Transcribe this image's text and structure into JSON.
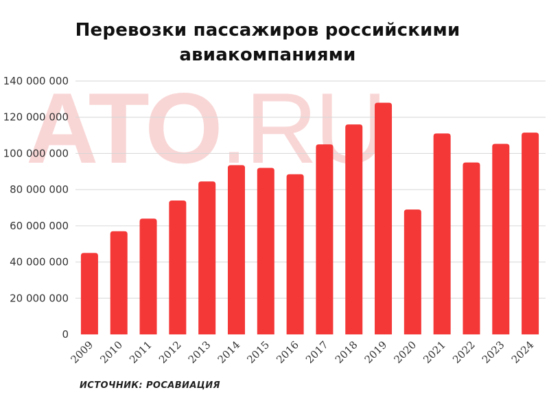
{
  "title_line1": "Перевозки пассажиров российскими",
  "title_line2": "авиакомпаниями",
  "watermark": {
    "main": "ATO",
    "suffix": ".RU"
  },
  "source": "ИСТОЧНИК: РОСАВИАЦИЯ",
  "colors": {
    "bar": "#f43737",
    "grid": "#d6d6d6",
    "watermark": "#f7c9c9"
  },
  "chart_data": {
    "type": "bar",
    "categories": [
      "2009",
      "2010",
      "2011",
      "2012",
      "2013",
      "2014",
      "2015",
      "2016",
      "2017",
      "2018",
      "2019",
      "2020",
      "2021",
      "2022",
      "2023",
      "2024"
    ],
    "values": [
      45000000,
      57000000,
      64000000,
      74000000,
      84500000,
      93500000,
      92000000,
      88500000,
      105000000,
      116000000,
      128000000,
      69000000,
      111000000,
      95000000,
      105300000,
      111500000
    ],
    "ylim": [
      0,
      140000000
    ],
    "yticks": [
      0,
      20000000,
      40000000,
      60000000,
      80000000,
      100000000,
      120000000,
      140000000
    ],
    "ytick_labels": [
      "0",
      "20 000 000",
      "40 000 000",
      "60 000 000",
      "80 000 000",
      "100 000 000",
      "120 000 000",
      "140 000 000"
    ],
    "grid": true,
    "xlabel": "",
    "ylabel": ""
  }
}
